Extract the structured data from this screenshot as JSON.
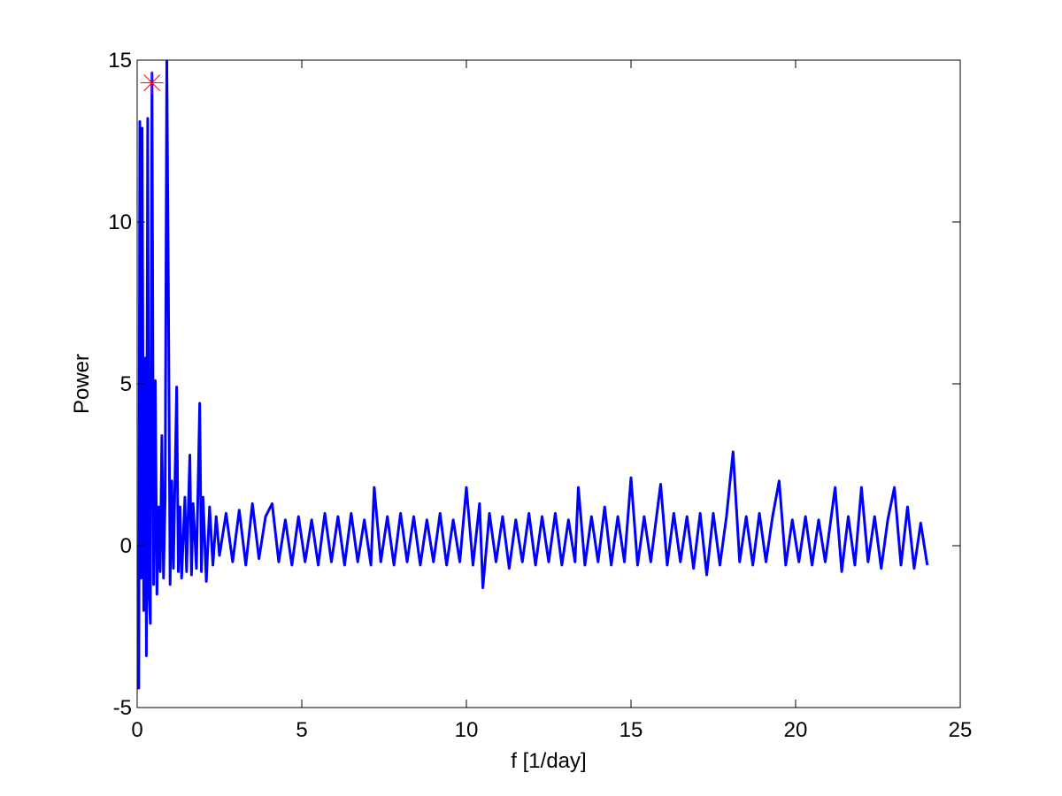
{
  "chart_data": {
    "type": "line",
    "xlabel": "f [1/day]",
    "ylabel": "Power",
    "xlim": [
      0,
      25
    ],
    "ylim": [
      -5,
      15
    ],
    "xticks": [
      0,
      5,
      10,
      15,
      20,
      25
    ],
    "yticks": [
      -5,
      0,
      5,
      10,
      15
    ],
    "grid": false,
    "x": [
      0,
      0.05,
      0.08,
      0.12,
      0.15,
      0.2,
      0.25,
      0.28,
      0.32,
      0.36,
      0.4,
      0.45,
      0.5,
      0.55,
      0.6,
      0.65,
      0.7,
      0.75,
      0.8,
      0.85,
      0.9,
      0.95,
      1.0,
      1.05,
      1.1,
      1.2,
      1.25,
      1.3,
      1.35,
      1.45,
      1.5,
      1.6,
      1.65,
      1.7,
      1.8,
      1.9,
      1.95,
      2.0,
      2.1,
      2.2,
      2.3,
      2.4,
      2.5,
      2.7,
      2.9,
      3.1,
      3.3,
      3.5,
      3.7,
      3.9,
      4.1,
      4.3,
      4.5,
      4.7,
      4.9,
      5.1,
      5.3,
      5.5,
      5.7,
      5.9,
      6.1,
      6.3,
      6.5,
      6.7,
      6.9,
      7.1,
      7.2,
      7.4,
      7.6,
      7.8,
      8.0,
      8.2,
      8.4,
      8.6,
      8.8,
      9.0,
      9.2,
      9.4,
      9.6,
      9.8,
      10.0,
      10.2,
      10.4,
      10.5,
      10.7,
      10.9,
      11.1,
      11.3,
      11.5,
      11.7,
      11.9,
      12.1,
      12.3,
      12.5,
      12.7,
      12.9,
      13.1,
      13.3,
      13.4,
      13.6,
      13.8,
      14.0,
      14.2,
      14.4,
      14.6,
      14.8,
      15.0,
      15.2,
      15.4,
      15.6,
      15.9,
      16.1,
      16.3,
      16.5,
      16.7,
      16.9,
      17.1,
      17.3,
      17.5,
      17.7,
      17.9,
      18.1,
      18.3,
      18.5,
      18.7,
      18.9,
      19.1,
      19.3,
      19.5,
      19.7,
      19.9,
      20.1,
      20.3,
      20.5,
      20.7,
      20.9,
      21.2,
      21.4,
      21.6,
      21.8,
      22.0,
      22.2,
      22.4,
      22.6,
      22.8,
      23.0,
      23.2,
      23.4,
      23.6,
      23.8,
      24.0
    ],
    "series": [
      {
        "color": "#0000ff",
        "values": [
          0,
          -4.4,
          13.1,
          -1,
          12.9,
          -2,
          5.8,
          -3.4,
          13.2,
          -1.5,
          -2.4,
          14.6,
          -1.2,
          5.1,
          -1.5,
          1.2,
          -0.8,
          3.4,
          -1,
          1.5,
          15,
          7.7,
          -1.2,
          2,
          -0.7,
          4.9,
          -0.8,
          1.2,
          -1,
          1.5,
          -0.8,
          2.8,
          -0.9,
          1.3,
          -0.7,
          4.4,
          -0.8,
          1.5,
          -1.1,
          1.2,
          -0.6,
          0.9,
          -0.3,
          1.0,
          -0.5,
          1.1,
          -0.6,
          1.3,
          -0.4,
          0.9,
          1.3,
          -0.5,
          0.8,
          -0.6,
          0.9,
          -0.5,
          0.8,
          -0.6,
          1.0,
          -0.5,
          0.9,
          -0.6,
          1.0,
          -0.5,
          0.8,
          -0.6,
          1.8,
          -0.5,
          0.9,
          -0.6,
          1.0,
          -0.5,
          0.9,
          -0.6,
          0.8,
          -0.5,
          1.0,
          -0.6,
          0.8,
          -0.5,
          1.8,
          -0.6,
          1.3,
          -1.3,
          1.0,
          -0.5,
          0.9,
          -0.7,
          0.8,
          -0.5,
          1.0,
          -0.6,
          0.9,
          -0.5,
          1.0,
          -0.6,
          0.8,
          -0.5,
          1.8,
          -0.6,
          0.9,
          -0.5,
          1.2,
          -0.6,
          0.9,
          -0.5,
          2.1,
          -0.6,
          0.9,
          -0.5,
          1.9,
          -0.6,
          1.0,
          -0.5,
          0.9,
          -0.7,
          1.0,
          -0.9,
          1.0,
          -0.6,
          0.9,
          2.9,
          -0.5,
          0.9,
          -0.6,
          1.0,
          -0.5,
          0.9,
          2.0,
          -0.6,
          0.8,
          -0.5,
          0.9,
          -0.6,
          0.8,
          -0.5,
          1.8,
          -0.8,
          0.9,
          -0.6,
          1.8,
          -0.5,
          0.9,
          -0.7,
          0.8,
          1.8,
          -0.6,
          1.2,
          -0.7,
          0.7,
          -0.6
        ]
      }
    ],
    "marker": {
      "x": 0.45,
      "y": 14.3,
      "color": "#ff0000"
    }
  }
}
